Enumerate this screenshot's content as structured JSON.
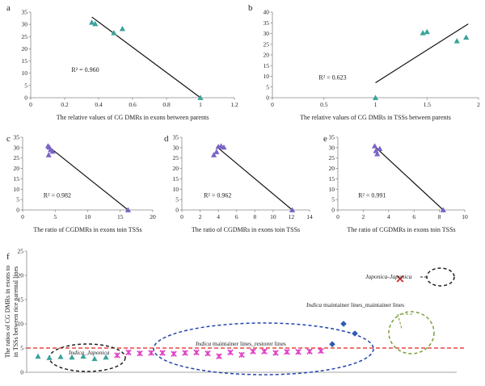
{
  "chart_data": [
    {
      "id": "a",
      "panel_label": "a",
      "type": "scatter",
      "xlabel": "The relative values of CG DMRs in exons between parents",
      "ylabel": "",
      "xlim": [
        0,
        1.2
      ],
      "ylim": [
        0,
        35
      ],
      "xticks": [
        0,
        0.2,
        0.4,
        0.6,
        0.8,
        1,
        1.2
      ],
      "xtick_labels": [
        "0",
        "0.2",
        "0.4",
        "0.6",
        "0.8",
        "1",
        "1.2"
      ],
      "yticks": [
        0,
        5,
        10,
        15,
        20,
        25,
        30,
        35
      ],
      "ytick_labels": [
        "0",
        "5",
        "10",
        "15",
        "20",
        "25",
        "30",
        "35"
      ],
      "points": [
        {
          "x": 0.36,
          "y": 30.8
        },
        {
          "x": 0.38,
          "y": 30.2
        },
        {
          "x": 0.49,
          "y": 26.5
        },
        {
          "x": 0.54,
          "y": 28.2
        },
        {
          "x": 1.0,
          "y": 0.0
        }
      ],
      "trendline": {
        "x": [
          0.36,
          1.0
        ],
        "y": [
          33.0,
          0.0
        ]
      },
      "r2_label": "R² = 0.960",
      "r2_pos": {
        "x": 0.24,
        "y": 10.5
      }
    },
    {
      "id": "b",
      "panel_label": "b",
      "type": "scatter",
      "xlabel": "The relative values of CG DMRs in TSSs  between parents",
      "ylabel": "",
      "xlim": [
        0,
        2
      ],
      "ylim": [
        0,
        40
      ],
      "xticks": [
        0,
        0.5,
        1,
        1.5,
        2
      ],
      "xtick_labels": [
        "0",
        "0.5",
        "1",
        "1.5",
        "2"
      ],
      "yticks": [
        0,
        5,
        10,
        15,
        20,
        25,
        30,
        35,
        40
      ],
      "ytick_labels": [
        "0",
        "5",
        "10",
        "15",
        "20",
        "25",
        "30",
        "35",
        "40"
      ],
      "points": [
        {
          "x": 1.0,
          "y": 0.0
        },
        {
          "x": 1.46,
          "y": 30.3
        },
        {
          "x": 1.5,
          "y": 30.8
        },
        {
          "x": 1.79,
          "y": 26.5
        },
        {
          "x": 1.88,
          "y": 28.2
        }
      ],
      "trendline": {
        "x": [
          1.0,
          1.9
        ],
        "y": [
          7.0,
          34.5
        ]
      },
      "r2_label": "R² = 0.623",
      "r2_pos": {
        "x": 0.45,
        "y": 8.5
      }
    },
    {
      "id": "c",
      "panel_label": "c",
      "type": "scatter",
      "xlabel": "The ratio of CGDMRs in exons toin TSSs",
      "ylabel": "",
      "xlim": [
        0,
        20
      ],
      "ylim": [
        0,
        35
      ],
      "xticks": [
        0,
        5,
        10,
        15,
        20
      ],
      "xtick_labels": [
        "0",
        "5",
        "10",
        "15",
        "20"
      ],
      "yticks": [
        0,
        5,
        10,
        15,
        20,
        25,
        30,
        35
      ],
      "ytick_labels": [
        "0",
        "5",
        "10",
        "15",
        "20",
        "25",
        "30",
        "35"
      ],
      "points": [
        {
          "x": 3.9,
          "y": 30.8
        },
        {
          "x": 4.1,
          "y": 30.2
        },
        {
          "x": 4.3,
          "y": 29.0
        },
        {
          "x": 4.0,
          "y": 26.5
        },
        {
          "x": 4.6,
          "y": 28.2
        },
        {
          "x": 16.2,
          "y": 0.0
        }
      ],
      "trendline": {
        "x": [
          4.0,
          16.2
        ],
        "y": [
          30.5,
          0.0
        ]
      },
      "r2_label": "R² = 0.982",
      "r2_pos": {
        "x": 3.2,
        "y": 6.0
      }
    },
    {
      "id": "d",
      "panel_label": "d",
      "type": "scatter",
      "xlabel": "The ratio of CGDMRs in exons toin TSSs",
      "ylabel": "",
      "xlim": [
        0,
        14
      ],
      "ylim": [
        0,
        35
      ],
      "xticks": [
        0,
        2,
        4,
        6,
        8,
        10,
        12,
        14
      ],
      "xtick_labels": [
        "0",
        "2",
        "4",
        "6",
        "8",
        "10",
        "12",
        "14"
      ],
      "yticks": [
        0,
        5,
        10,
        15,
        20,
        25,
        30,
        35
      ],
      "ytick_labels": [
        "0",
        "5",
        "10",
        "15",
        "20",
        "25",
        "30",
        "35"
      ],
      "points": [
        {
          "x": 3.5,
          "y": 26.5
        },
        {
          "x": 3.8,
          "y": 28.0
        },
        {
          "x": 4.0,
          "y": 30.5
        },
        {
          "x": 4.3,
          "y": 30.8
        },
        {
          "x": 4.6,
          "y": 30.2
        },
        {
          "x": 12.1,
          "y": 0.0
        }
      ],
      "trendline": {
        "x": [
          3.8,
          12.1
        ],
        "y": [
          30.5,
          0.0
        ]
      },
      "r2_label": "R² = 0.962",
      "r2_pos": {
        "x": 2.4,
        "y": 6.0
      }
    },
    {
      "id": "e",
      "panel_label": "e",
      "type": "scatter",
      "xlabel": "The ratio of CGDMRs in exons toin TSSs",
      "ylabel": "",
      "xlim": [
        0,
        10
      ],
      "ylim": [
        0,
        35
      ],
      "xticks": [
        0,
        2,
        4,
        6,
        8,
        10
      ],
      "xtick_labels": [
        "0",
        "2",
        "4",
        "6",
        "8",
        "10"
      ],
      "yticks": [
        0,
        5,
        10,
        15,
        20,
        25,
        30,
        35
      ],
      "ytick_labels": [
        "0",
        "5",
        "10",
        "15",
        "20",
        "25",
        "30",
        "35"
      ],
      "points": [
        {
          "x": 2.9,
          "y": 30.8
        },
        {
          "x": 3.0,
          "y": 28.5
        },
        {
          "x": 3.1,
          "y": 27.0
        },
        {
          "x": 3.3,
          "y": 29.5
        },
        {
          "x": 8.3,
          "y": 0.0
        }
      ],
      "trendline": {
        "x": [
          3.0,
          8.3
        ],
        "y": [
          30.0,
          0.0
        ]
      },
      "r2_label": "R² = 0.991",
      "r2_pos": {
        "x": 1.6,
        "y": 6.0
      }
    },
    {
      "id": "f",
      "panel_label": "f",
      "type": "scatter",
      "ylabel": "The ratios of CG DMRs in exons to in TSSs between  rice  parental lines",
      "xlabel": "",
      "xlim": [
        0,
        38
      ],
      "ylim": [
        0,
        25
      ],
      "yticks": [
        0,
        5,
        10,
        15,
        20,
        25
      ],
      "ytick_labels": [
        "0",
        "5",
        "10",
        "15",
        "20",
        "25"
      ],
      "reference_line": {
        "y": 5.0,
        "color": "#e0231d",
        "style": "dashed"
      },
      "series": [
        {
          "name": "Indica_Japonica",
          "marker": "triangle",
          "color": "#3aa39a",
          "x": [
            1,
            2,
            3,
            4,
            5,
            6,
            7
          ],
          "y": [
            3.3,
            3.0,
            3.2,
            3.1,
            3.3,
            2.8,
            3.1
          ]
        },
        {
          "name": "Indica maintainer lines_restorer lines",
          "marker": "star",
          "color": "#e040c8",
          "x": [
            8,
            9,
            10,
            11,
            12,
            13,
            14,
            15,
            16,
            17,
            18,
            19,
            20,
            21,
            22,
            23,
            24,
            25,
            26
          ],
          "y": [
            3.5,
            4.1,
            3.9,
            4.0,
            4.0,
            3.8,
            4.0,
            4.1,
            3.9,
            3.3,
            4.1,
            3.6,
            4.3,
            4.3,
            4.0,
            4.2,
            4.2,
            4.3,
            4.4
          ]
        },
        {
          "name": "Indica maintainer lines_maintainer lines",
          "marker": "diamond",
          "color": "#2b5bb5",
          "x": [
            27,
            28,
            29
          ],
          "y": [
            5.8,
            10.0,
            8.0
          ]
        },
        {
          "name": "Japonica-Japonica",
          "marker": "x",
          "color": "#d0282d",
          "x": [
            33
          ],
          "y": [
            19.3
          ]
        }
      ],
      "annotations": [
        {
          "italic": "Indica",
          "text": "_Japonica",
          "italic2": "Japonica",
          "full": "Indica_Japonica"
        },
        {
          "italic": "Indica",
          "text": " maintainer lines_restorer lines"
        },
        {
          "italic": "Indica",
          "text": " maintainer lines_maintainer lines"
        },
        {
          "italic": "Japonica-Japonica",
          "text": ""
        }
      ]
    }
  ]
}
